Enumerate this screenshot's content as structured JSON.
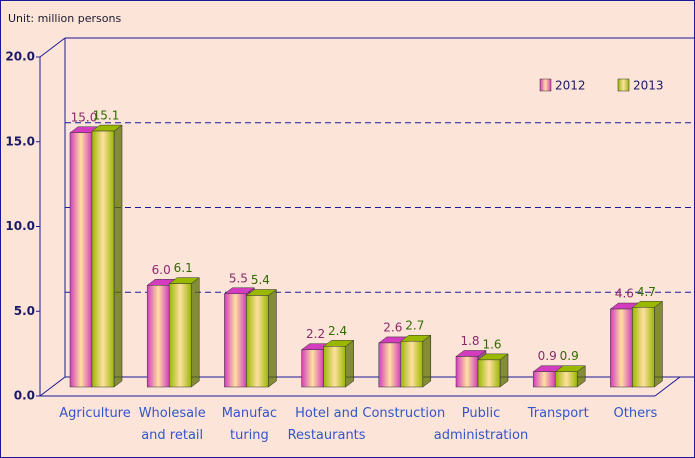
{
  "chart_data": {
    "type": "bar3d",
    "unit_label": "Unit: million persons",
    "categories": [
      [
        "Agriculture"
      ],
      [
        "Wholesale",
        "and retail"
      ],
      [
        "Manufac",
        "turing"
      ],
      [
        "Hotel and",
        "Restaurants"
      ],
      [
        "Construction"
      ],
      [
        "Public",
        "administration"
      ],
      [
        "Transport"
      ],
      [
        "Others"
      ]
    ],
    "series": [
      {
        "name": "2012",
        "color": "#d43cbf",
        "label_color": "#8b2a6b",
        "values": [
          15.0,
          6.0,
          5.5,
          2.2,
          2.6,
          1.8,
          0.9,
          4.6
        ],
        "value_labels": [
          "15.0",
          "6.0",
          "5.5",
          "2.2",
          "2.6",
          "1.8",
          "0.9",
          "4.6"
        ]
      },
      {
        "name": "2013",
        "color": "#9ab800",
        "label_color": "#2f6b00",
        "values": [
          15.1,
          6.1,
          5.4,
          2.4,
          2.7,
          1.6,
          0.9,
          4.7
        ],
        "value_labels": [
          "15.1",
          "6.1",
          "5.4",
          "2.4",
          "2.7",
          "1.6",
          "0.9",
          "4.7"
        ]
      }
    ],
    "ylim": [
      0,
      20
    ],
    "yticks": [
      {
        "value": 0,
        "label": "0.0"
      },
      {
        "value": 5,
        "label": "5.0"
      },
      {
        "value": 10,
        "label": "10.0"
      },
      {
        "value": 15,
        "label": "15.0"
      },
      {
        "value": 20,
        "label": "20.0"
      }
    ],
    "grid": true,
    "legend": "top-right"
  }
}
